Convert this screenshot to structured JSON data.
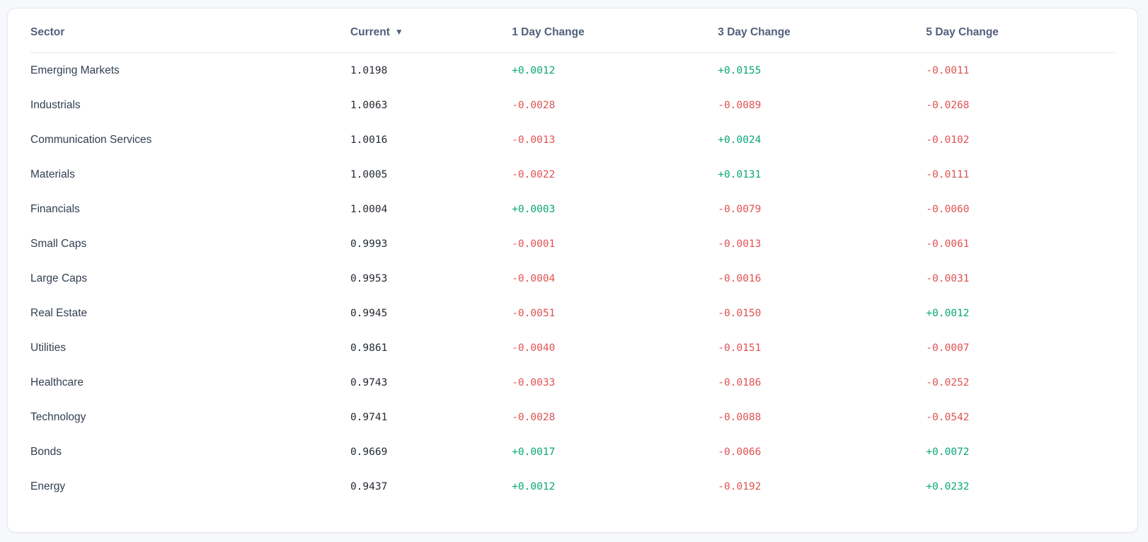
{
  "colors": {
    "page_background": "#f7f8fb",
    "card_background": "#ffffff",
    "card_border": "#e4e7ec",
    "header_text": "#51607a",
    "sector_text": "#333f52",
    "current_value_text": "#252b33",
    "positive": "#0ca678",
    "negative": "#e05252"
  },
  "table": {
    "columns": [
      {
        "key": "sector",
        "label": "Sector",
        "sorted": false
      },
      {
        "key": "current",
        "label": "Current",
        "sorted": "desc",
        "sort_indicator": "▼"
      },
      {
        "key": "d1",
        "label": "1 Day Change",
        "sorted": false
      },
      {
        "key": "d3",
        "label": "3 Day Change",
        "sorted": false
      },
      {
        "key": "d5",
        "label": "5 Day Change",
        "sorted": false
      }
    ],
    "column_widths": [
      "29.5%",
      "14.9%",
      "19.0%",
      "19.2%",
      "17.4%"
    ],
    "rows": [
      {
        "sector": "Emerging Markets",
        "current": "1.0198",
        "d1": "+0.0012",
        "d3": "+0.0155",
        "d5": "-0.0011"
      },
      {
        "sector": "Industrials",
        "current": "1.0063",
        "d1": "-0.0028",
        "d3": "-0.0089",
        "d5": "-0.0268"
      },
      {
        "sector": "Communication Services",
        "current": "1.0016",
        "d1": "-0.0013",
        "d3": "+0.0024",
        "d5": "-0.0102"
      },
      {
        "sector": "Materials",
        "current": "1.0005",
        "d1": "-0.0022",
        "d3": "+0.0131",
        "d5": "-0.0111"
      },
      {
        "sector": "Financials",
        "current": "1.0004",
        "d1": "+0.0003",
        "d3": "-0.0079",
        "d5": "-0.0060"
      },
      {
        "sector": "Small Caps",
        "current": "0.9993",
        "d1": "-0.0001",
        "d3": "-0.0013",
        "d5": "-0.0061"
      },
      {
        "sector": "Large Caps",
        "current": "0.9953",
        "d1": "-0.0004",
        "d3": "-0.0016",
        "d5": "-0.0031"
      },
      {
        "sector": "Real Estate",
        "current": "0.9945",
        "d1": "-0.0051",
        "d3": "-0.0150",
        "d5": "+0.0012"
      },
      {
        "sector": "Utilities",
        "current": "0.9861",
        "d1": "-0.0040",
        "d3": "-0.0151",
        "d5": "-0.0007"
      },
      {
        "sector": "Healthcare",
        "current": "0.9743",
        "d1": "-0.0033",
        "d3": "-0.0186",
        "d5": "-0.0252"
      },
      {
        "sector": "Technology",
        "current": "0.9741",
        "d1": "-0.0028",
        "d3": "-0.0088",
        "d5": "-0.0542"
      },
      {
        "sector": "Bonds",
        "current": "0.9669",
        "d1": "+0.0017",
        "d3": "-0.0066",
        "d5": "+0.0072"
      },
      {
        "sector": "Energy",
        "current": "0.9437",
        "d1": "+0.0012",
        "d3": "-0.0192",
        "d5": "+0.0232"
      }
    ]
  }
}
